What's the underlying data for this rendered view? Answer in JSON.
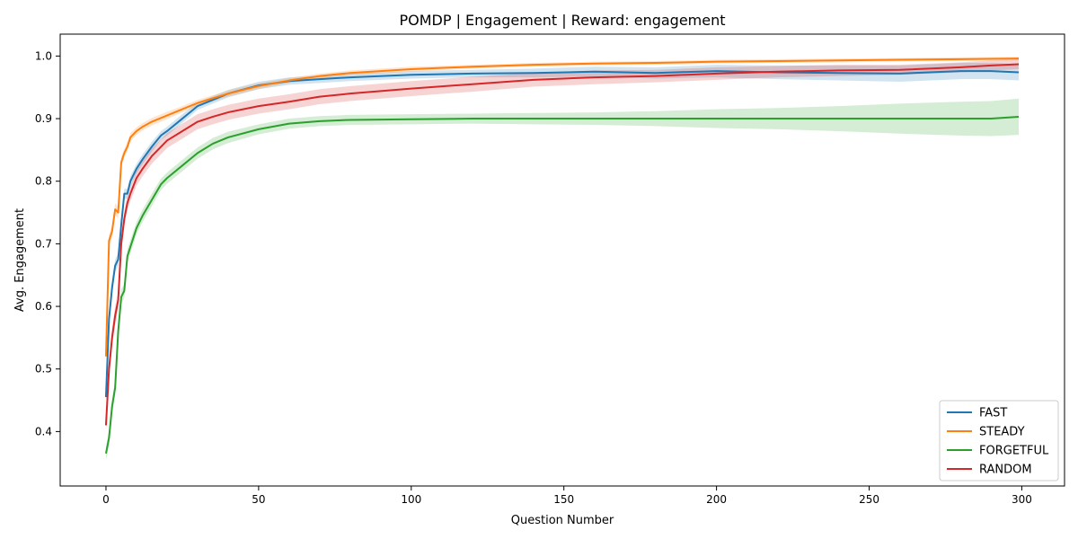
{
  "chart_data": {
    "type": "line",
    "title": "POMDP | Engagement | Reward: engagement",
    "xlabel": "Question Number",
    "ylabel": "Avg. Engagement",
    "xlim": [
      -15,
      314
    ],
    "ylim": [
      0.313,
      1.035
    ],
    "xticks": [
      0,
      50,
      100,
      150,
      200,
      250,
      300
    ],
    "yticks": [
      0.4,
      0.5,
      0.6,
      0.7,
      0.8,
      0.9,
      1.0
    ],
    "xtick_labels": [
      "0",
      "50",
      "100",
      "150",
      "200",
      "250",
      "300"
    ],
    "ytick_labels": [
      "0.4",
      "0.5",
      "0.6",
      "0.7",
      "0.8",
      "0.9",
      "1.0"
    ],
    "grid": false,
    "legend_position": "bottom-right",
    "shaded_band": "variability band around each series",
    "series": [
      {
        "name": "FAST",
        "color": "#1f77b4",
        "x": [
          0,
          1,
          2,
          3,
          4,
          5,
          6,
          7,
          8,
          10,
          12,
          15,
          18,
          20,
          25,
          30,
          35,
          40,
          50,
          60,
          70,
          80,
          100,
          120,
          140,
          160,
          180,
          200,
          220,
          240,
          260,
          280,
          290,
          299
        ],
        "values": [
          0.455,
          0.58,
          0.63,
          0.665,
          0.675,
          0.73,
          0.78,
          0.78,
          0.8,
          0.82,
          0.835,
          0.855,
          0.873,
          0.88,
          0.9,
          0.92,
          0.93,
          0.94,
          0.953,
          0.96,
          0.963,
          0.966,
          0.97,
          0.972,
          0.973,
          0.975,
          0.973,
          0.976,
          0.974,
          0.973,
          0.972,
          0.976,
          0.976,
          0.974
        ],
        "band": [
          0.006,
          0.012,
          0.012,
          0.01,
          0.01,
          0.01,
          0.008,
          0.008,
          0.008,
          0.008,
          0.008,
          0.008,
          0.007,
          0.007,
          0.007,
          0.006,
          0.006,
          0.006,
          0.006,
          0.006,
          0.006,
          0.006,
          0.006,
          0.006,
          0.007,
          0.008,
          0.009,
          0.01,
          0.011,
          0.012,
          0.013,
          0.013,
          0.013,
          0.013
        ]
      },
      {
        "name": "STEADY",
        "color": "#ff7f0e",
        "x": [
          0,
          1,
          2,
          3,
          4,
          5,
          6,
          7,
          8,
          10,
          12,
          15,
          20,
          25,
          30,
          40,
          50,
          60,
          70,
          80,
          100,
          120,
          140,
          160,
          180,
          200,
          220,
          240,
          260,
          280,
          299
        ],
        "values": [
          0.52,
          0.705,
          0.72,
          0.755,
          0.75,
          0.83,
          0.845,
          0.855,
          0.87,
          0.88,
          0.887,
          0.895,
          0.905,
          0.915,
          0.925,
          0.94,
          0.952,
          0.961,
          0.968,
          0.973,
          0.979,
          0.983,
          0.986,
          0.988,
          0.989,
          0.991,
          0.992,
          0.993,
          0.994,
          0.995,
          0.996
        ],
        "band": [
          0.006,
          0.01,
          0.01,
          0.01,
          0.009,
          0.008,
          0.007,
          0.007,
          0.007,
          0.006,
          0.006,
          0.006,
          0.006,
          0.005,
          0.005,
          0.005,
          0.005,
          0.004,
          0.004,
          0.004,
          0.004,
          0.003,
          0.003,
          0.003,
          0.003,
          0.003,
          0.003,
          0.003,
          0.003,
          0.003,
          0.003
        ]
      },
      {
        "name": "FORGETFUL",
        "color": "#2ca02c",
        "x": [
          0,
          1,
          2,
          3,
          4,
          5,
          6,
          7,
          8,
          10,
          12,
          15,
          18,
          20,
          25,
          30,
          35,
          40,
          50,
          60,
          70,
          80,
          100,
          120,
          140,
          160,
          180,
          200,
          220,
          240,
          260,
          280,
          290,
          299
        ],
        "values": [
          0.365,
          0.39,
          0.44,
          0.47,
          0.56,
          0.615,
          0.625,
          0.68,
          0.695,
          0.725,
          0.745,
          0.77,
          0.795,
          0.805,
          0.825,
          0.845,
          0.86,
          0.87,
          0.883,
          0.892,
          0.896,
          0.898,
          0.899,
          0.9,
          0.9,
          0.9,
          0.9,
          0.9,
          0.9,
          0.9,
          0.9,
          0.9,
          0.9,
          0.903
        ],
        "band": [
          0.01,
          0.012,
          0.012,
          0.012,
          0.012,
          0.012,
          0.011,
          0.011,
          0.011,
          0.01,
          0.01,
          0.01,
          0.009,
          0.009,
          0.009,
          0.009,
          0.009,
          0.009,
          0.008,
          0.008,
          0.008,
          0.008,
          0.008,
          0.008,
          0.009,
          0.01,
          0.012,
          0.015,
          0.017,
          0.02,
          0.024,
          0.027,
          0.028,
          0.029
        ]
      },
      {
        "name": "RANDOM",
        "color": "#d62728",
        "x": [
          0,
          1,
          2,
          3,
          4,
          5,
          6,
          7,
          8,
          10,
          12,
          15,
          18,
          20,
          25,
          30,
          35,
          40,
          50,
          60,
          70,
          80,
          100,
          120,
          140,
          160,
          180,
          200,
          220,
          240,
          260,
          280,
          290,
          299
        ],
        "values": [
          0.41,
          0.5,
          0.55,
          0.585,
          0.61,
          0.7,
          0.74,
          0.765,
          0.78,
          0.805,
          0.82,
          0.84,
          0.855,
          0.865,
          0.88,
          0.895,
          0.903,
          0.91,
          0.92,
          0.927,
          0.935,
          0.94,
          0.948,
          0.955,
          0.962,
          0.966,
          0.968,
          0.972,
          0.975,
          0.977,
          0.978,
          0.982,
          0.985,
          0.987
        ],
        "band": [
          0.01,
          0.015,
          0.015,
          0.015,
          0.014,
          0.013,
          0.012,
          0.012,
          0.012,
          0.012,
          0.012,
          0.012,
          0.012,
          0.012,
          0.012,
          0.012,
          0.012,
          0.012,
          0.012,
          0.012,
          0.012,
          0.012,
          0.012,
          0.012,
          0.011,
          0.011,
          0.01,
          0.01,
          0.009,
          0.009,
          0.008,
          0.008,
          0.008,
          0.008
        ]
      }
    ]
  }
}
